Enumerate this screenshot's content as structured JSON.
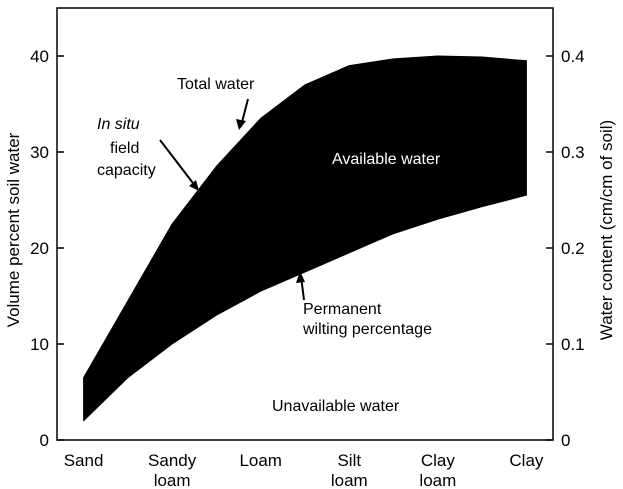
{
  "chart_data": {
    "type": "area",
    "categories": [
      "Sand",
      "Sandy loam",
      "Loam",
      "Silt loam",
      "Clay loam",
      "Clay"
    ],
    "x": [
      0,
      1,
      2,
      3,
      4,
      5
    ],
    "series": [
      {
        "name": "Total water",
        "x": [
          0,
          0.5,
          1,
          1.5,
          2,
          2.5,
          3,
          3.5,
          4,
          4.5,
          5
        ],
        "values": [
          6.5,
          14.5,
          22.5,
          28.5,
          33.5,
          37,
          39,
          39.7,
          40,
          39.9,
          39.5
        ]
      },
      {
        "name": "Permanent wilting percentage",
        "x": [
          0,
          0.5,
          1,
          1.5,
          2,
          2.5,
          3,
          3.5,
          4,
          4.5,
          5
        ],
        "values": [
          2,
          6.5,
          10,
          13,
          15.5,
          17.5,
          19.5,
          21.5,
          23,
          24.3,
          25.5
        ]
      }
    ],
    "ylim": [
      0,
      45
    ],
    "y_right_lim": [
      0,
      0.45
    ],
    "yticks": [
      0,
      10,
      20,
      30,
      40
    ],
    "y_right_ticks": [
      "0",
      "0.1",
      "0.2",
      "0.3",
      "0.4"
    ],
    "ylabel": "Volume percent soil water",
    "y_right_label": "Water content (cm/cm of soil)",
    "xtick_labels": [
      [
        "Sand"
      ],
      [
        "Sandy",
        "loam"
      ],
      [
        "Loam"
      ],
      [
        "Silt",
        "loam"
      ],
      [
        "Clay",
        "loam"
      ],
      [
        "Clay"
      ]
    ],
    "annotations": {
      "total_water": "Total water",
      "in_situ": "In situ",
      "field": "field",
      "capacity": "capacity",
      "available_water": "Available water",
      "pwp_line1": "Permanent",
      "pwp_line2": "wilting percentage",
      "unavailable_water": "Unavailable water"
    },
    "colors": {
      "available_band": "#000000",
      "background": "#ffffff"
    },
    "grid": false,
    "legend": "none"
  }
}
